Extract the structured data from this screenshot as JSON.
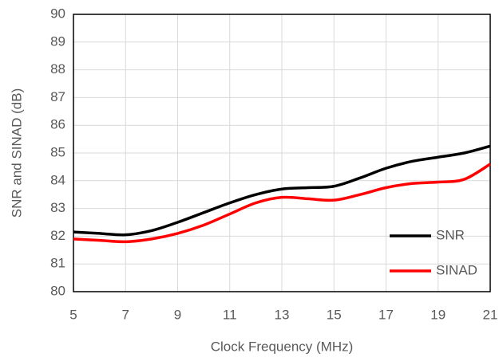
{
  "chart_data": {
    "type": "line",
    "xlabel": "Clock Frequency (MHz)",
    "ylabel": "SNR and SINAD (dB)",
    "x": [
      5,
      6,
      7,
      8,
      9,
      10,
      11,
      12,
      13,
      14,
      15,
      16,
      17,
      18,
      19,
      20,
      21
    ],
    "series": [
      {
        "name": "SNR",
        "color": "#000000",
        "values": [
          82.15,
          82.1,
          82.05,
          82.2,
          82.5,
          82.85,
          83.2,
          83.5,
          83.7,
          83.75,
          83.8,
          84.1,
          84.45,
          84.7,
          84.85,
          85.0,
          85.25
        ]
      },
      {
        "name": "SINAD",
        "color": "#ff0000",
        "values": [
          81.9,
          81.85,
          81.8,
          81.9,
          82.1,
          82.4,
          82.8,
          83.2,
          83.4,
          83.35,
          83.3,
          83.5,
          83.75,
          83.9,
          83.95,
          84.05,
          84.6
        ]
      }
    ],
    "xlim": [
      5,
      21
    ],
    "xticks": [
      5,
      7,
      9,
      11,
      13,
      15,
      17,
      19,
      21
    ],
    "ylim": [
      80,
      90
    ],
    "yticks": [
      80,
      81,
      82,
      83,
      84,
      85,
      86,
      87,
      88,
      89,
      90
    ],
    "grid": true,
    "legend": "lower right"
  }
}
